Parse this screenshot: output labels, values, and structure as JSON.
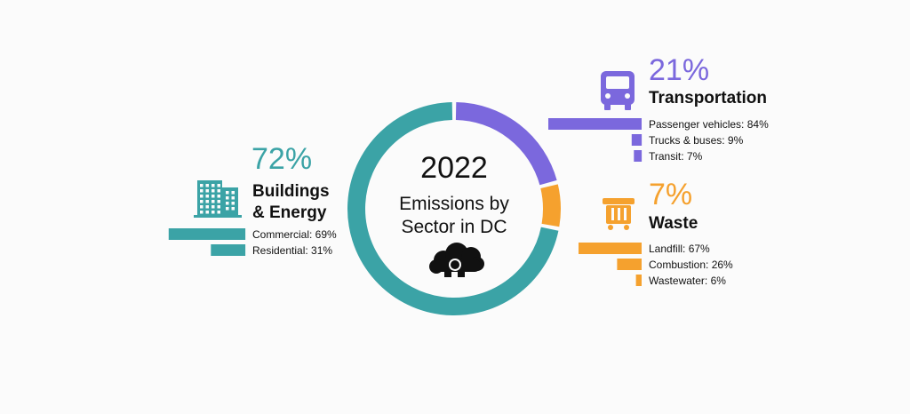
{
  "colors": {
    "buildings": "#3ba3a6",
    "transportation": "#7b68dd",
    "waste": "#f5a12e",
    "text": "#111111",
    "icon_dark": "#111111"
  },
  "center": {
    "year": "2022",
    "line1": "Emissions by",
    "line2": "Sector in DC",
    "icon": "cloud-icon"
  },
  "chart_data": {
    "type": "pie",
    "title": "2022 Emissions by Sector in DC",
    "style": "donut",
    "sectors": [
      {
        "key": "transportation",
        "percent_label": "21%",
        "name": "Transportation",
        "value": 21,
        "icon": "bus-icon",
        "breakdown": {
          "type": "bar",
          "orientation": "horizontal",
          "items": [
            {
              "label": "Passenger vehicles: 84%",
              "value": 84
            },
            {
              "label": "Trucks & buses: 9%",
              "value": 9
            },
            {
              "label": "Transit: 7%",
              "value": 7
            }
          ]
        }
      },
      {
        "key": "waste",
        "percent_label": "7%",
        "name": "Waste",
        "value": 7,
        "icon": "dumpster-icon",
        "breakdown": {
          "type": "bar",
          "orientation": "horizontal",
          "items": [
            {
              "label": "Landfill: 67%",
              "value": 67
            },
            {
              "label": "Combustion: 26%",
              "value": 26
            },
            {
              "label": "Wastewater: 6%",
              "value": 6
            }
          ]
        }
      },
      {
        "key": "buildings",
        "percent_label": "72%",
        "name_line1": "Buildings",
        "name_line2": "& Energy",
        "value": 72,
        "icon": "building-icon",
        "breakdown": {
          "type": "bar",
          "orientation": "horizontal",
          "items": [
            {
              "label": "Commercial: 69%",
              "value": 69
            },
            {
              "label": "Residential: 31%",
              "value": 31
            }
          ]
        }
      }
    ]
  }
}
